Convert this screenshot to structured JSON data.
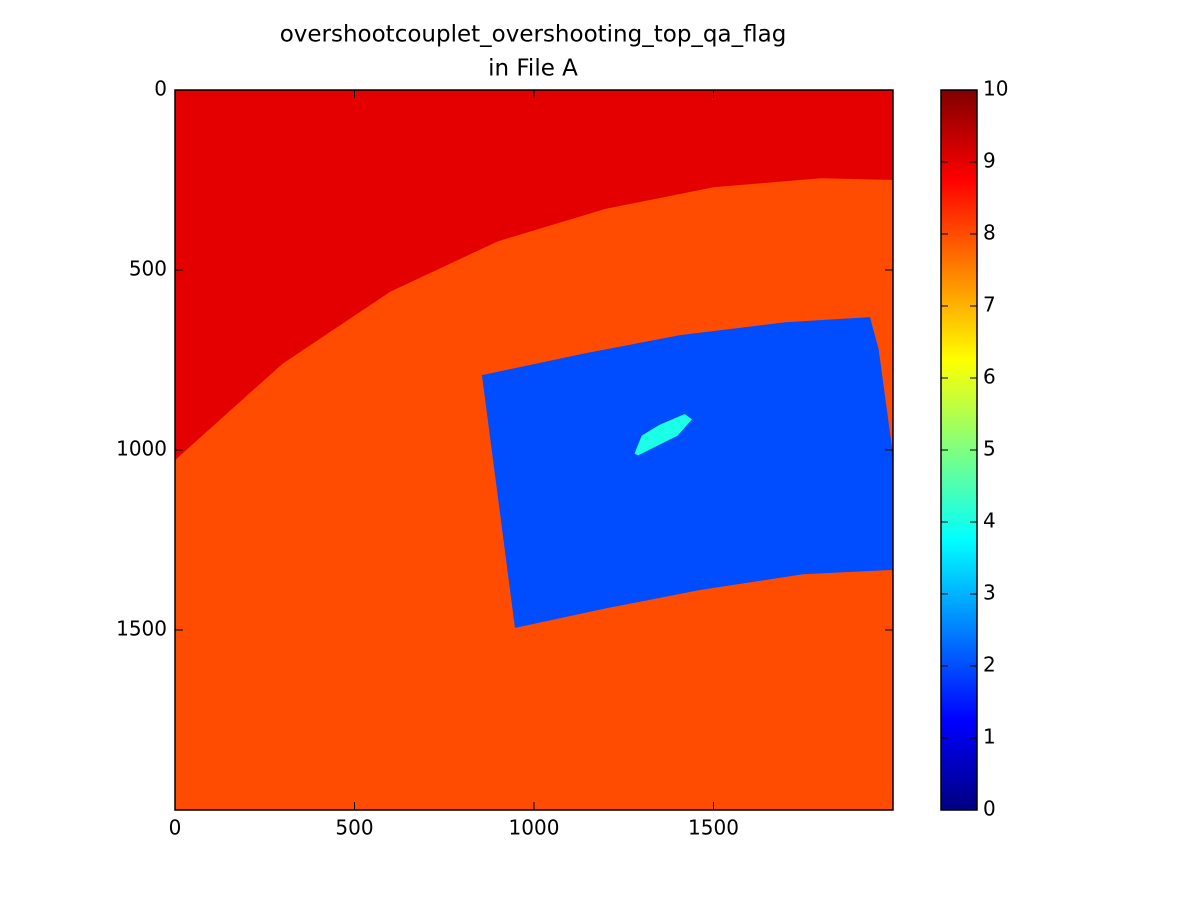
{
  "chart_data": {
    "type": "heatmap",
    "title": "overshootcouplet_overshooting_top_qa_flag",
    "subtitle": "in File A",
    "xlim": [
      0,
      2000
    ],
    "ylim": [
      2000,
      0
    ],
    "xticks": [
      0,
      500,
      1000,
      1500
    ],
    "yticks": [
      0,
      500,
      1000,
      1500
    ],
    "colormap": "jet",
    "clim": [
      0,
      10
    ],
    "colorbar_ticks": [
      0,
      1,
      2,
      3,
      4,
      5,
      6,
      7,
      8,
      9,
      10
    ],
    "background_value": 8,
    "regions": [
      {
        "value": 9,
        "polygon": [
          [
            0,
            0
          ],
          [
            2000,
            0
          ],
          [
            2000,
            250
          ],
          [
            1800,
            245
          ],
          [
            1500,
            270
          ],
          [
            1200,
            330
          ],
          [
            900,
            420
          ],
          [
            600,
            560
          ],
          [
            300,
            760
          ],
          [
            0,
            1028
          ]
        ]
      },
      {
        "value": 2,
        "polygon": [
          [
            855,
            792
          ],
          [
            1150,
            730
          ],
          [
            1407,
            681
          ],
          [
            1700,
            645
          ],
          [
            1936,
            631
          ],
          [
            1960,
            720
          ],
          [
            2000,
            1014
          ],
          [
            2000,
            1333
          ],
          [
            1750,
            1345
          ],
          [
            1462,
            1389
          ],
          [
            1200,
            1440
          ],
          [
            947,
            1494
          ]
        ]
      },
      {
        "value": 4,
        "polygon": [
          [
            1280,
            1010
          ],
          [
            1300,
            960
          ],
          [
            1350,
            930
          ],
          [
            1420,
            900
          ],
          [
            1440,
            915
          ],
          [
            1400,
            960
          ],
          [
            1340,
            990
          ],
          [
            1290,
            1015
          ]
        ]
      }
    ]
  }
}
